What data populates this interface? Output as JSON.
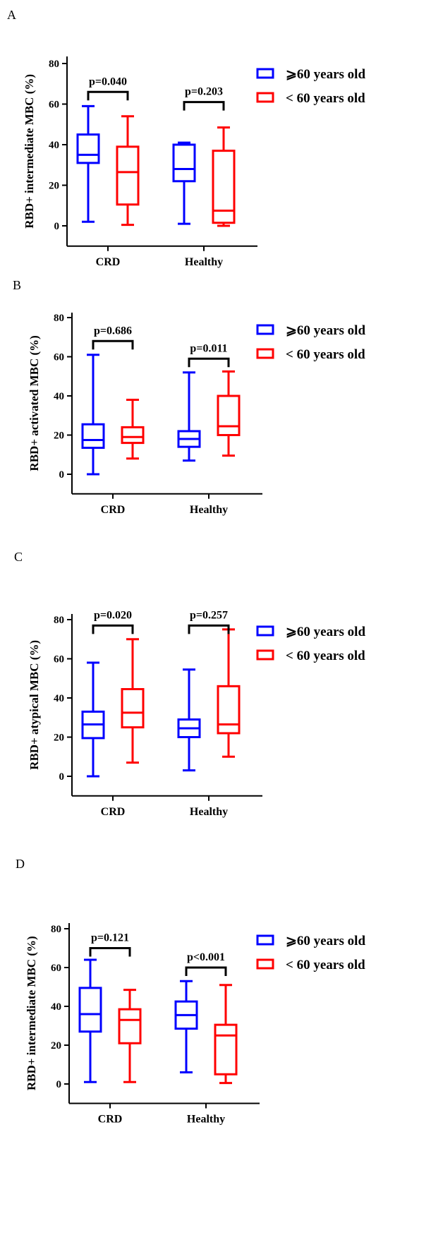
{
  "chart_data": [
    {
      "type": "box",
      "panel": "A",
      "ylabel": "RBD+ intermediate MBC (%)",
      "ylim": [
        -10,
        80
      ],
      "yticks": [
        0,
        20,
        40,
        60,
        80
      ],
      "categories": [
        "CRD",
        "Healthy"
      ],
      "legend": {
        "placement": "top-right"
      },
      "series": [
        {
          "name": "⩾60 years old",
          "color": "#0000ff",
          "boxes": [
            {
              "min": 2,
              "q1": 31,
              "median": 35,
              "q3": 45,
              "max": 59
            },
            {
              "min": 1,
              "q1": 22,
              "median": 28,
              "q3": 40,
              "max": 41
            }
          ]
        },
        {
          "name": "< 60 years old",
          "color": "#ff0000",
          "boxes": [
            {
              "min": 0.5,
              "q1": 10.5,
              "median": 26.5,
              "q3": 39,
              "max": 54
            },
            {
              "min": 0,
              "q1": 1.5,
              "median": 7.5,
              "q3": 37,
              "max": 48.5
            }
          ]
        }
      ],
      "pvalues": [
        "p=0.040",
        "p=0.203"
      ]
    },
    {
      "type": "box",
      "panel": "B",
      "ylabel": "RBD+ activated MBC (%)",
      "ylim": [
        -10,
        80
      ],
      "yticks": [
        0,
        20,
        40,
        60,
        80
      ],
      "categories": [
        "CRD",
        "Healthy"
      ],
      "legend": {
        "placement": "top-right"
      },
      "series": [
        {
          "name": "⩾60 years old",
          "color": "#0000ff",
          "boxes": [
            {
              "min": 0,
              "q1": 13.5,
              "median": 17.5,
              "q3": 25.5,
              "max": 61
            },
            {
              "min": 7,
              "q1": 14,
              "median": 18,
              "q3": 22,
              "max": 52
            }
          ]
        },
        {
          "name": "< 60 years old",
          "color": "#ff0000",
          "boxes": [
            {
              "min": 8,
              "q1": 16,
              "median": 19,
              "q3": 24,
              "max": 38
            },
            {
              "min": 9.5,
              "q1": 20,
              "median": 24.5,
              "q3": 40,
              "max": 52.5
            }
          ]
        }
      ],
      "pvalues": [
        "p=0.686",
        "p=0.011"
      ]
    },
    {
      "type": "box",
      "panel": "C",
      "ylabel": "RBD+ atypical MBC (%)",
      "ylim": [
        -10,
        80
      ],
      "yticks": [
        0,
        20,
        40,
        60,
        80
      ],
      "categories": [
        "CRD",
        "Healthy"
      ],
      "legend": {
        "placement": "top-right"
      },
      "series": [
        {
          "name": "⩾60 years old",
          "color": "#0000ff",
          "boxes": [
            {
              "min": 0,
              "q1": 19.5,
              "median": 26.5,
              "q3": 33,
              "max": 58
            },
            {
              "min": 3,
              "q1": 20,
              "median": 24.5,
              "q3": 29,
              "max": 54.5
            }
          ]
        },
        {
          "name": "< 60 years old",
          "color": "#ff0000",
          "boxes": [
            {
              "min": 7,
              "q1": 25,
              "median": 32.5,
              "q3": 44.5,
              "max": 70
            },
            {
              "min": 10,
              "q1": 22,
              "median": 26.5,
              "q3": 46,
              "max": 75
            }
          ]
        }
      ],
      "pvalues": [
        "p=0.020",
        "p=0.257"
      ]
    },
    {
      "type": "box",
      "panel": "D",
      "ylabel": "RBD+ intermediate MBC (%)",
      "ylim": [
        -10,
        80
      ],
      "yticks": [
        0,
        20,
        40,
        60,
        80
      ],
      "categories": [
        "CRD",
        "Healthy"
      ],
      "legend": {
        "placement": "top-right"
      },
      "series": [
        {
          "name": "⩾60 years old",
          "color": "#0000ff",
          "boxes": [
            {
              "min": 1,
              "q1": 27,
              "median": 36,
              "q3": 49.5,
              "max": 64
            },
            {
              "min": 6,
              "q1": 28.5,
              "median": 35.5,
              "q3": 42.5,
              "max": 53
            }
          ]
        },
        {
          "name": "< 60 years old",
          "color": "#ff0000",
          "boxes": [
            {
              "min": 1,
              "q1": 21,
              "median": 33,
              "q3": 38.5,
              "max": 48.5
            },
            {
              "min": 0.5,
              "q1": 5,
              "median": 25,
              "q3": 30.5,
              "max": 51
            }
          ]
        }
      ],
      "pvalues": [
        "p=0.121",
        "p<0.001"
      ]
    }
  ]
}
